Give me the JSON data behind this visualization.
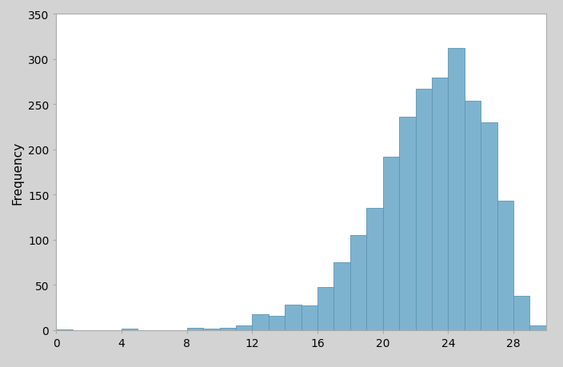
{
  "bar_left_edges": [
    0,
    1,
    2,
    3,
    4,
    5,
    6,
    7,
    8,
    9,
    10,
    11,
    12,
    13,
    14,
    15,
    16,
    17,
    18,
    19,
    20,
    21,
    22,
    23,
    24,
    25,
    26,
    27,
    28,
    29
  ],
  "frequencies": [
    1,
    0,
    0,
    0,
    2,
    0,
    0,
    0,
    3,
    2,
    3,
    5,
    18,
    16,
    28,
    27,
    48,
    75,
    105,
    135,
    192,
    236,
    267,
    280,
    312,
    254,
    230,
    143,
    38,
    5
  ],
  "bar_width": 1.0,
  "bar_color": "#7eb3d0",
  "bar_edge_color": "#5a95b5",
  "bar_edge_width": 0.6,
  "ylabel": "Frequency",
  "xlim": [
    0,
    30
  ],
  "ylim": [
    0,
    350
  ],
  "xticks": [
    0,
    4,
    8,
    12,
    16,
    20,
    24,
    28
  ],
  "yticks": [
    0,
    50,
    100,
    150,
    200,
    250,
    300,
    350
  ],
  "background_color": "#ffffff",
  "figure_bg": "#d3d3d3",
  "tick_label_fontsize": 10,
  "axis_label_fontsize": 11,
  "ylabel_rotation": 90
}
